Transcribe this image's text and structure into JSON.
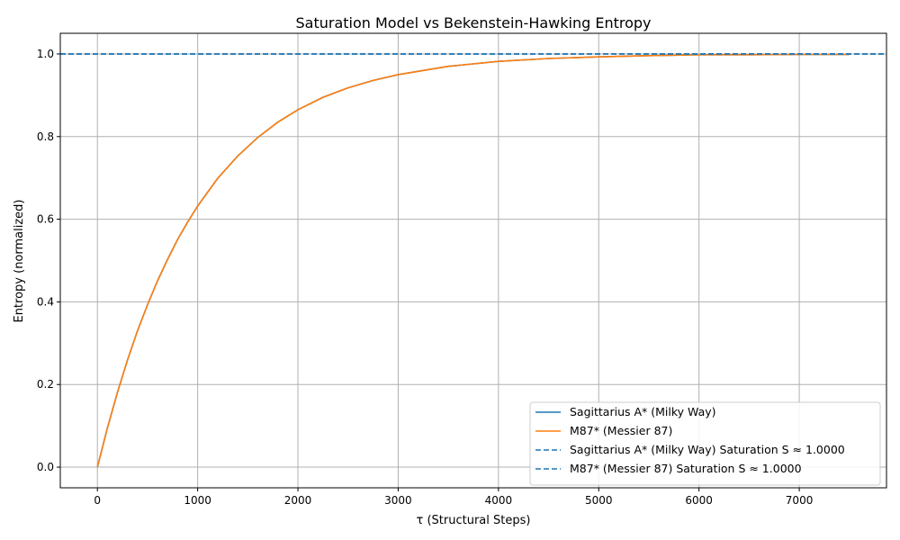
{
  "chart_data": {
    "type": "line",
    "title": "Saturation Model vs Bekenstein-Hawking Entropy",
    "xlabel": "τ (Structural Steps)",
    "ylabel": "Entropy (normalized)",
    "xlim": [
      -370,
      7870
    ],
    "ylim": [
      -0.05,
      1.05
    ],
    "xticks": [
      0,
      1000,
      2000,
      3000,
      4000,
      5000,
      6000,
      7000
    ],
    "yticks": [
      0.0,
      0.2,
      0.4,
      0.6,
      0.8,
      1.0
    ],
    "xtick_labels": [
      "0",
      "1000",
      "2000",
      "3000",
      "4000",
      "5000",
      "6000",
      "7000"
    ],
    "ytick_labels": [
      "0.0",
      "0.2",
      "0.4",
      "0.6",
      "0.8",
      "1.0"
    ],
    "grid": true,
    "legend_position": "lower-right",
    "series": [
      {
        "name": "Sagittarius A* (Milky Way)",
        "color": "#1f77b4",
        "style": "solid",
        "x": [
          0,
          100,
          200,
          300,
          400,
          500,
          600,
          700,
          800,
          900,
          1000,
          1200,
          1400,
          1600,
          1800,
          2000,
          2250,
          2500,
          2750,
          3000,
          3500,
          4000,
          4500,
          5000,
          5500,
          6000,
          6500,
          7000,
          7500
        ],
        "y": [
          0.0,
          0.095,
          0.181,
          0.259,
          0.33,
          0.393,
          0.451,
          0.503,
          0.551,
          0.593,
          0.632,
          0.699,
          0.753,
          0.798,
          0.835,
          0.865,
          0.895,
          0.918,
          0.936,
          0.95,
          0.97,
          0.982,
          0.989,
          0.993,
          0.996,
          0.998,
          0.998,
          0.999,
          0.999
        ]
      },
      {
        "name": "M87* (Messier 87)",
        "color": "#ff7f0e",
        "style": "solid",
        "x": [
          0,
          100,
          200,
          300,
          400,
          500,
          600,
          700,
          800,
          900,
          1000,
          1200,
          1400,
          1600,
          1800,
          2000,
          2250,
          2500,
          2750,
          3000,
          3500,
          4000,
          4500,
          5000,
          5500,
          6000,
          6500,
          7000,
          7500
        ],
        "y": [
          0.0,
          0.095,
          0.181,
          0.259,
          0.33,
          0.393,
          0.451,
          0.503,
          0.551,
          0.593,
          0.632,
          0.699,
          0.753,
          0.798,
          0.835,
          0.865,
          0.895,
          0.918,
          0.936,
          0.95,
          0.97,
          0.982,
          0.989,
          0.993,
          0.996,
          0.998,
          0.998,
          0.999,
          0.999
        ]
      }
    ],
    "hlines": [
      {
        "name": "Sagittarius A* (Milky Way) Saturation S ≈ 1.0000",
        "y": 1.0,
        "color": "#1f77b4",
        "style": "dashed"
      },
      {
        "name": "M87* (Messier 87) Saturation S ≈ 1.0000",
        "y": 1.0,
        "color": "#1f77b4",
        "style": "dashed"
      }
    ]
  }
}
